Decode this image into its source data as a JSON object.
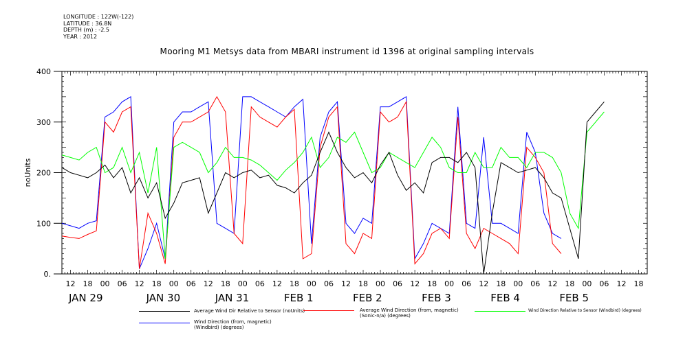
{
  "header": {
    "meta": [
      "LONGITUDE : 122W(-122)",
      "LATITUDE : 36.8N",
      "DEPTH (m) : -2.5",
      "YEAR : 2012"
    ],
    "title": "Mooring M1 Metsys data from MBARI instrument id 1396 at original sampling intervals"
  },
  "chart_data": {
    "type": "line",
    "ylabel": "noUnits",
    "ylim": [
      0,
      400
    ],
    "yticks": [
      0,
      100,
      200,
      300,
      400
    ],
    "ytick_labels": [
      "0.",
      "100",
      "200",
      "300",
      "400"
    ],
    "x_hour_range": [
      -15,
      189
    ],
    "x_hour_ticks": [
      -12,
      -6,
      0,
      6,
      12,
      18,
      24,
      30,
      36,
      42,
      48,
      54,
      60,
      66,
      72,
      78,
      84,
      90,
      96,
      102,
      108,
      114,
      120,
      126,
      132,
      138,
      144,
      150,
      156,
      162,
      168,
      174,
      180,
      186
    ],
    "x_hour_labels": [
      "12",
      "18",
      "00",
      "06",
      "12",
      "18",
      "00",
      "06",
      "12",
      "18",
      "00",
      "06",
      "12",
      "18",
      "00",
      "06",
      "12",
      "18",
      "00",
      "06",
      "12",
      "18",
      "00",
      "06",
      "12",
      "18",
      "00",
      "06",
      "12",
      "18",
      "00",
      "06",
      "12",
      "18"
    ],
    "days": [
      {
        "label": "JAN 29",
        "hour": -15
      },
      {
        "label": "JAN 30",
        "hour": 12
      },
      {
        "label": "JAN 31",
        "hour": 36
      },
      {
        "label": "FEB  1",
        "hour": 60
      },
      {
        "label": "FEB  2",
        "hour": 84
      },
      {
        "label": "FEB  3",
        "hour": 108
      },
      {
        "label": "FEB  4",
        "hour": 132
      },
      {
        "label": "FEB  5",
        "hour": 156
      }
    ],
    "series": [
      {
        "name": "Average Wind Dir Relative to Sensor (noUnits)",
        "color": "#000000",
        "points": [
          [
            -15,
            210
          ],
          [
            -12,
            200
          ],
          [
            -9,
            195
          ],
          [
            -6,
            190
          ],
          [
            -3,
            200
          ],
          [
            0,
            215
          ],
          [
            3,
            190
          ],
          [
            6,
            210
          ],
          [
            9,
            160
          ],
          [
            12,
            190
          ],
          [
            15,
            150
          ],
          [
            18,
            180
          ],
          [
            21,
            110
          ],
          [
            24,
            140
          ],
          [
            27,
            180
          ],
          [
            30,
            185
          ],
          [
            33,
            190
          ],
          [
            36,
            120
          ],
          [
            39,
            160
          ],
          [
            42,
            200
          ],
          [
            45,
            190
          ],
          [
            48,
            200
          ],
          [
            51,
            205
          ],
          [
            54,
            190
          ],
          [
            57,
            195
          ],
          [
            60,
            175
          ],
          [
            63,
            170
          ],
          [
            66,
            160
          ],
          [
            69,
            180
          ],
          [
            72,
            195
          ],
          [
            75,
            240
          ],
          [
            78,
            280
          ],
          [
            81,
            240
          ],
          [
            84,
            210
          ],
          [
            87,
            190
          ],
          [
            90,
            200
          ],
          [
            93,
            180
          ],
          [
            96,
            215
          ],
          [
            99,
            240
          ],
          [
            102,
            195
          ],
          [
            105,
            165
          ],
          [
            108,
            180
          ],
          [
            111,
            160
          ],
          [
            114,
            220
          ],
          [
            117,
            230
          ],
          [
            120,
            230
          ],
          [
            123,
            220
          ],
          [
            126,
            240
          ],
          [
            129,
            210
          ],
          [
            132,
            0
          ],
          [
            135,
            120
          ],
          [
            138,
            220
          ],
          [
            141,
            210
          ],
          [
            144,
            200
          ],
          [
            147,
            205
          ],
          [
            150,
            210
          ],
          [
            153,
            190
          ],
          [
            156,
            160
          ],
          [
            159,
            150
          ],
          [
            162,
            90
          ],
          [
            165,
            30
          ],
          [
            168,
            300
          ],
          [
            171,
            320
          ],
          [
            174,
            340
          ]
        ]
      },
      {
        "name": "Average Wind Direction (from, magnetic) (Sonic-n/a) (degrees)",
        "color": "#ff0000",
        "points": [
          [
            -15,
            75
          ],
          [
            -12,
            72
          ],
          [
            -9,
            70
          ],
          [
            -6,
            78
          ],
          [
            -3,
            85
          ],
          [
            0,
            300
          ],
          [
            3,
            280
          ],
          [
            6,
            320
          ],
          [
            9,
            330
          ],
          [
            12,
            10
          ],
          [
            15,
            120
          ],
          [
            18,
            80
          ],
          [
            21,
            20
          ],
          [
            24,
            270
          ],
          [
            27,
            300
          ],
          [
            30,
            300
          ],
          [
            33,
            310
          ],
          [
            36,
            320
          ],
          [
            39,
            350
          ],
          [
            42,
            320
          ],
          [
            45,
            80
          ],
          [
            48,
            60
          ],
          [
            51,
            330
          ],
          [
            54,
            310
          ],
          [
            57,
            300
          ],
          [
            60,
            290
          ],
          [
            63,
            310
          ],
          [
            66,
            325
          ],
          [
            69,
            30
          ],
          [
            72,
            40
          ],
          [
            75,
            250
          ],
          [
            78,
            310
          ],
          [
            81,
            330
          ],
          [
            84,
            60
          ],
          [
            87,
            40
          ],
          [
            90,
            80
          ],
          [
            93,
            70
          ],
          [
            96,
            320
          ],
          [
            99,
            300
          ],
          [
            102,
            310
          ],
          [
            105,
            340
          ],
          [
            108,
            20
          ],
          [
            111,
            40
          ],
          [
            114,
            80
          ],
          [
            117,
            90
          ],
          [
            120,
            70
          ],
          [
            123,
            310
          ],
          [
            126,
            80
          ],
          [
            129,
            50
          ],
          [
            132,
            90
          ],
          [
            135,
            80
          ],
          [
            138,
            70
          ],
          [
            141,
            60
          ],
          [
            144,
            40
          ],
          [
            147,
            250
          ],
          [
            150,
            230
          ],
          [
            153,
            200
          ],
          [
            156,
            60
          ],
          [
            159,
            40
          ]
        ]
      },
      {
        "name": "Wind Direction Relative to Sensor (Windbird) (degrees)",
        "color": "#00ff00",
        "points": [
          [
            -15,
            235
          ],
          [
            -12,
            230
          ],
          [
            -9,
            225
          ],
          [
            -6,
            240
          ],
          [
            -3,
            250
          ],
          [
            0,
            200
          ],
          [
            3,
            210
          ],
          [
            6,
            250
          ],
          [
            9,
            200
          ],
          [
            12,
            240
          ],
          [
            15,
            160
          ],
          [
            18,
            250
          ],
          [
            21,
            30
          ],
          [
            24,
            250
          ],
          [
            27,
            260
          ],
          [
            30,
            250
          ],
          [
            33,
            240
          ],
          [
            36,
            200
          ],
          [
            39,
            220
          ],
          [
            42,
            250
          ],
          [
            45,
            230
          ],
          [
            48,
            230
          ],
          [
            51,
            225
          ],
          [
            54,
            215
          ],
          [
            57,
            200
          ],
          [
            60,
            185
          ],
          [
            63,
            205
          ],
          [
            66,
            220
          ],
          [
            69,
            240
          ],
          [
            72,
            270
          ],
          [
            75,
            210
          ],
          [
            78,
            230
          ],
          [
            81,
            270
          ],
          [
            84,
            260
          ],
          [
            87,
            280
          ],
          [
            90,
            240
          ],
          [
            93,
            200
          ],
          [
            96,
            210
          ],
          [
            99,
            240
          ],
          [
            102,
            230
          ],
          [
            105,
            220
          ],
          [
            108,
            210
          ],
          [
            111,
            240
          ],
          [
            114,
            270
          ],
          [
            117,
            250
          ],
          [
            120,
            210
          ],
          [
            123,
            200
          ],
          [
            126,
            200
          ],
          [
            129,
            240
          ],
          [
            132,
            210
          ],
          [
            135,
            210
          ],
          [
            138,
            250
          ],
          [
            141,
            230
          ],
          [
            144,
            230
          ],
          [
            147,
            210
          ],
          [
            150,
            240
          ],
          [
            153,
            240
          ],
          [
            156,
            230
          ],
          [
            159,
            200
          ],
          [
            162,
            120
          ],
          [
            165,
            90
          ],
          [
            168,
            280
          ],
          [
            171,
            300
          ],
          [
            174,
            320
          ]
        ]
      },
      {
        "name": "Wind Direction (from, magnetic) (Windbird) (degrees)",
        "color": "#0000ff",
        "points": [
          [
            -15,
            100
          ],
          [
            -12,
            95
          ],
          [
            -9,
            90
          ],
          [
            -6,
            100
          ],
          [
            -3,
            105
          ],
          [
            0,
            310
          ],
          [
            3,
            320
          ],
          [
            6,
            340
          ],
          [
            9,
            350
          ],
          [
            12,
            10
          ],
          [
            15,
            50
          ],
          [
            18,
            100
          ],
          [
            21,
            30
          ],
          [
            24,
            300
          ],
          [
            27,
            320
          ],
          [
            30,
            320
          ],
          [
            33,
            330
          ],
          [
            36,
            340
          ],
          [
            39,
            100
          ],
          [
            42,
            90
          ],
          [
            45,
            80
          ],
          [
            48,
            350
          ],
          [
            51,
            350
          ],
          [
            54,
            340
          ],
          [
            57,
            330
          ],
          [
            60,
            320
          ],
          [
            63,
            310
          ],
          [
            66,
            330
          ],
          [
            69,
            345
          ],
          [
            72,
            60
          ],
          [
            75,
            270
          ],
          [
            78,
            320
          ],
          [
            81,
            340
          ],
          [
            84,
            100
          ],
          [
            87,
            80
          ],
          [
            90,
            110
          ],
          [
            93,
            100
          ],
          [
            96,
            330
          ],
          [
            99,
            330
          ],
          [
            102,
            340
          ],
          [
            105,
            350
          ],
          [
            108,
            30
          ],
          [
            111,
            60
          ],
          [
            114,
            100
          ],
          [
            117,
            90
          ],
          [
            120,
            80
          ],
          [
            123,
            330
          ],
          [
            126,
            100
          ],
          [
            129,
            90
          ],
          [
            132,
            270
          ],
          [
            135,
            100
          ],
          [
            138,
            100
          ],
          [
            141,
            90
          ],
          [
            144,
            80
          ],
          [
            147,
            280
          ],
          [
            150,
            240
          ],
          [
            153,
            120
          ],
          [
            156,
            80
          ],
          [
            159,
            70
          ]
        ]
      }
    ]
  }
}
